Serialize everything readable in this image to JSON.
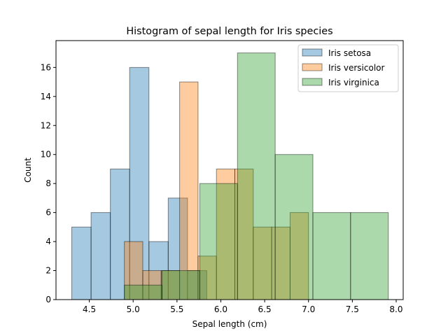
{
  "chart_data": {
    "type": "bar",
    "title": "Histogram of sepal length for Iris species",
    "xlabel": "Sepal length (cm)",
    "ylabel": "Count",
    "xlim": [
      4.12,
      8.08
    ],
    "ylim": [
      0,
      17.85
    ],
    "xticks": [
      4.5,
      5.0,
      5.5,
      6.0,
      6.5,
      7.0,
      7.5,
      8.0
    ],
    "xtick_labels": [
      "4.5",
      "5.0",
      "5.5",
      "6.0",
      "6.5",
      "7.0",
      "7.5",
      "8.0"
    ],
    "yticks": [
      0,
      2,
      4,
      6,
      8,
      10,
      12,
      14,
      16
    ],
    "ytick_labels": [
      "0",
      "2",
      "4",
      "6",
      "8",
      "10",
      "12",
      "14",
      "16"
    ],
    "legend_position": "top-right",
    "series": [
      {
        "name": "Iris setosa",
        "color": "#1f77b4",
        "bin_edges": [
          4.3,
          4.52,
          4.74,
          4.96,
          5.18,
          5.4,
          5.62,
          5.84
        ],
        "counts": [
          5,
          6,
          9,
          16,
          4,
          7,
          2
        ]
      },
      {
        "name": "Iris versicolor",
        "color": "#ff7f0e",
        "bin_edges": [
          4.9,
          5.11,
          5.32,
          5.53,
          5.74,
          5.95,
          6.16,
          6.37,
          6.58,
          6.79,
          7.0
        ],
        "counts": [
          4,
          2,
          2,
          15,
          3,
          9,
          9,
          5,
          5,
          6
        ]
      },
      {
        "name": "Iris virginica",
        "color": "#2ca02c",
        "bin_edges": [
          4.9,
          5.33,
          5.76,
          6.19,
          6.62,
          7.05,
          7.48,
          7.91
        ],
        "counts": [
          1,
          2,
          8,
          17,
          10,
          6,
          6
        ]
      }
    ]
  }
}
